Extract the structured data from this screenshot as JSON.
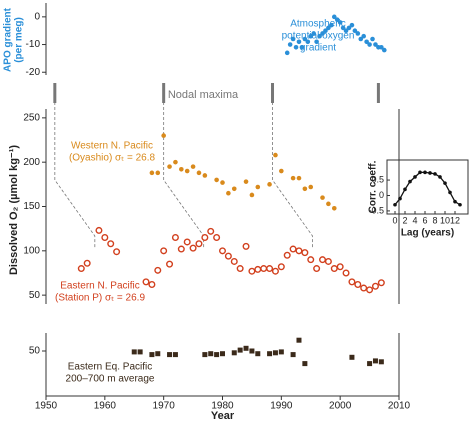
{
  "chart_data": [
    {
      "type": "scatter",
      "ylabel": [
        "APO gradient",
        "(per meg)"
      ],
      "ylim": [
        -21,
        5
      ],
      "yticks": [
        -20,
        -10,
        0
      ],
      "annotation": [
        "Atmospheric",
        "potential oxygen",
        "gradient"
      ],
      "nodal_maxima": {
        "label": "Nodal maxima",
        "x": [
          1951.5,
          1970,
          1988.5,
          2006.5
        ]
      },
      "series": [
        {
          "name": "Atmospheric potential oxygen gradient",
          "color": "#2a8fd8",
          "marker": "circle",
          "x": [
            1991,
            1991.5,
            1992,
            1992.5,
            1993,
            1993.5,
            1994,
            1994.5,
            1995,
            1995.5,
            1996,
            1996.5,
            1997,
            1997.5,
            1998,
            1998.5,
            1999,
            1999.5,
            2000,
            2000.5,
            2001,
            2001.5,
            2002,
            2002.5,
            2003,
            2003.5,
            2004,
            2004.5,
            2005,
            2005.5,
            2006,
            2006.5,
            2007,
            2007.5
          ],
          "values": [
            -13,
            -10,
            -8,
            -11,
            -9,
            -11,
            -8,
            -9,
            -7,
            -6,
            -9,
            -7,
            -6,
            -5,
            -4,
            -3,
            0,
            -1,
            -2,
            -4,
            -5,
            -4,
            -3,
            -5,
            -6,
            -8,
            -7,
            -9,
            -10,
            -8,
            -10,
            -11,
            -11,
            -12
          ]
        }
      ]
    },
    {
      "type": "scatter",
      "ylabel": "Dissolved O₂ (µmol kg⁻¹)",
      "ylim": [
        40,
        260
      ],
      "yticks": [
        50,
        100,
        150,
        200,
        250
      ],
      "series": [
        {
          "name": [
            "Western N. Pacific",
            "(Oyashio) σₜ = 26.8"
          ],
          "color": "#d98a1c",
          "marker": "circle",
          "x": [
            1968,
            1969,
            1970,
            1971,
            1972,
            1973,
            1974,
            1975,
            1976,
            1977,
            1979,
            1980,
            1981,
            1982,
            1984,
            1985,
            1986,
            1988,
            1989,
            1990,
            1992,
            1993,
            1994,
            1995,
            1997,
            1998,
            1999
          ],
          "values": [
            188,
            188,
            230,
            195,
            200,
            192,
            190,
            195,
            188,
            185,
            180,
            177,
            165,
            170,
            178,
            163,
            172,
            175,
            208,
            190,
            182,
            182,
            170,
            172,
            160,
            153,
            148
          ]
        },
        {
          "name": [
            "Eastern N. Pacific",
            "(Station P) σₜ = 26.9"
          ],
          "color": "#d2401e",
          "marker": "open-circle",
          "x": [
            1956,
            1957,
            1959,
            1960,
            1961,
            1962,
            1967,
            1968,
            1969,
            1970,
            1971,
            1972,
            1973,
            1974,
            1975,
            1976,
            1977,
            1978,
            1979,
            1980,
            1981,
            1982,
            1983,
            1984,
            1985,
            1986,
            1987,
            1988,
            1989,
            1990,
            1991,
            1992,
            1993,
            1994,
            1995,
            1996,
            1997,
            1998,
            1999,
            2000,
            2001,
            2002,
            2003,
            2004,
            2005,
            2006,
            2007
          ],
          "values": [
            80,
            86,
            123,
            115,
            108,
            99,
            65,
            62,
            78,
            100,
            85,
            115,
            102,
            110,
            103,
            108,
            115,
            122,
            115,
            100,
            94,
            88,
            80,
            105,
            77,
            79,
            80,
            80,
            77,
            82,
            95,
            102,
            100,
            98,
            90,
            80,
            90,
            88,
            80,
            82,
            75,
            65,
            62,
            58,
            56,
            60,
            64
          ]
        }
      ]
    },
    {
      "type": "scatter",
      "xlabel": "Year",
      "xlim": [
        1950,
        2010
      ],
      "xticks": [
        1950,
        1960,
        1970,
        1980,
        1990,
        2000,
        2010
      ],
      "ylim": [
        0,
        70
      ],
      "yticks": [
        50
      ],
      "series": [
        {
          "name": [
            "Eastern Eq. Pacific",
            "200–700 m average"
          ],
          "color": "#3b2a1a",
          "marker": "square",
          "x": [
            1965,
            1966,
            1968,
            1969,
            1971,
            1972,
            1977,
            1978,
            1979,
            1980,
            1982,
            1983,
            1984,
            1985,
            1986,
            1988,
            1989,
            1990,
            1992,
            1993,
            1994,
            2002,
            2005,
            2006,
            2007
          ],
          "values": [
            49,
            49,
            46,
            47,
            46,
            46,
            46,
            47,
            46,
            47,
            48,
            51,
            53,
            50,
            47,
            47,
            48,
            49,
            46,
            62,
            36,
            43,
            36,
            39,
            38
          ]
        }
      ]
    },
    {
      "type": "line",
      "xlabel": "Lag (years)",
      "ylabel": "Corr. coeff.",
      "color": "#111",
      "xlim": [
        -1.6,
        14.6
      ],
      "xticks": [
        0,
        2,
        4,
        6,
        8,
        10,
        12
      ],
      "ylim": [
        -0.6,
        1.15
      ],
      "yticks": [
        0.5,
        0,
        -0.5
      ],
      "x": [
        0,
        1,
        2,
        3,
        4,
        5,
        6,
        7,
        8,
        9,
        10,
        11,
        12,
        13
      ],
      "values": [
        -0.3,
        -0.1,
        0.2,
        0.45,
        0.6,
        0.75,
        0.75,
        0.73,
        0.7,
        0.6,
        0.4,
        0.1,
        -0.2,
        -0.3
      ]
    }
  ]
}
